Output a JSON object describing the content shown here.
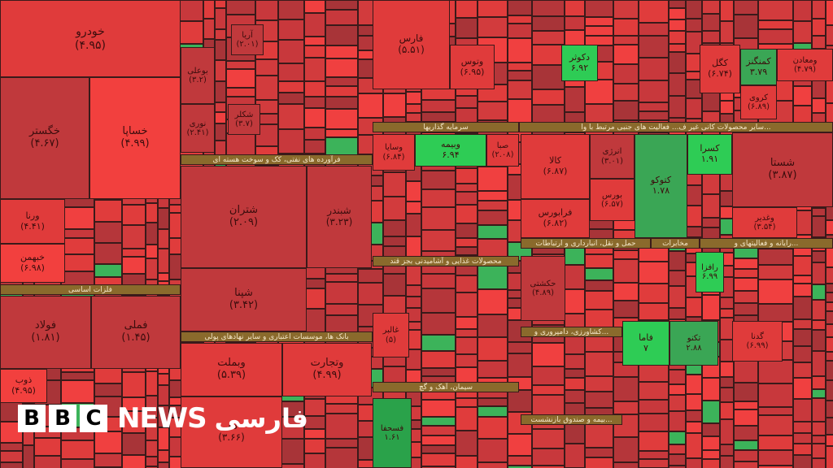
{
  "cells": [
    {
      "label": "خودرو",
      "value": "(۴.۹۵)"
    },
    {
      "label": "خگستر",
      "value": "(۴.۶۷)"
    },
    {
      "label": "خساپا",
      "value": "(۴.۹۹)"
    },
    {
      "label": "ورنا",
      "value": "(۴.۴۱)"
    },
    {
      "label": "خبهمن",
      "value": "(۶.۹۸)"
    },
    {
      "label": "فولاد",
      "value": "(۱.۸۱)"
    },
    {
      "label": "فملی",
      "value": "(۱.۴۵)"
    },
    {
      "label": "ذوب",
      "value": "(۴.۹۵)"
    },
    {
      "label": "بوعلی",
      "value": "(۳.۲)"
    },
    {
      "label": "نوری",
      "value": "(۲.۴۱)"
    },
    {
      "label": "شتران",
      "value": "(۲.۰۹)"
    },
    {
      "label": "شبندر",
      "value": "(۳.۲۳)"
    },
    {
      "label": "شپنا",
      "value": "(۳.۴۲)"
    },
    {
      "label": "وبملت",
      "value": "(۵.۳۹)"
    },
    {
      "label": "وتجارت",
      "value": "(۴.۹۹)"
    },
    {
      "label": "دی",
      "value": "(۳.۶۶)"
    },
    {
      "label": "فارس",
      "value": "(۵.۵۱)"
    },
    {
      "label": "وتوس",
      "value": "(۶.۹۵)"
    },
    {
      "label": "دکوثر",
      "value": "۶.۹۲"
    },
    {
      "label": "کگل",
      "value": "(۶.۷۴)"
    },
    {
      "label": "کمنگنز",
      "value": "۳.۷۹"
    },
    {
      "label": "کروی",
      "value": "(۶.۸۹)"
    },
    {
      "label": "ومعادن",
      "value": "(۴.۷۹)"
    },
    {
      "label": "وسایا",
      "value": "(۶.۸۴)"
    },
    {
      "label": "وبیمه",
      "value": "۶.۹۴"
    },
    {
      "label": "صبا",
      "value": "(۲.۰۸)"
    },
    {
      "label": "کالا",
      "value": "(۶.۸۷)"
    },
    {
      "label": "فرابورس",
      "value": "(۶.۸۲)"
    },
    {
      "label": "انرژی",
      "value": "(۳.۰۱)"
    },
    {
      "label": "بورس",
      "value": "(۶.۵۷)"
    },
    {
      "label": "کتوکو",
      "value": "۱.۷۸"
    },
    {
      "label": "کسرا",
      "value": "۱.۹۱"
    },
    {
      "label": "شستا",
      "value": "(۳.۸۷)"
    },
    {
      "label": "وغدیر",
      "value": "(۳.۵۴)"
    },
    {
      "label": "حکشتی",
      "value": "(۴.۸۹)"
    },
    {
      "label": "رافزا",
      "value": "۶.۹۹"
    },
    {
      "label": "فاما",
      "value": "۷"
    },
    {
      "label": "تکنو",
      "value": "۲.۸۸"
    },
    {
      "label": "گدنا",
      "value": "(۶.۹۹)"
    },
    {
      "label": "غالبر",
      "value": "(۵)"
    },
    {
      "label": "فسحفا",
      "value": "۱.۶۱"
    },
    {
      "label": "آریا",
      "value": "(۲.۰۱)"
    },
    {
      "label": "شکلر",
      "value": "(۳.۷)"
    }
  ],
  "bands": [
    "فلزات اساسی",
    "فرآورده های نفتی، کک و سوخت هسته ای",
    "بانک ها، موسسات اعتباری و سایر نهادهای پولی",
    "سرمایه گذاریها",
    "سایر محصولات کانی غیر ف... فعالیت های جنبی مرتبط با وا...",
    "محصولات غذایی و آشامیدنی بجز قند",
    "حمل و نقل، انبارداری و ارتباطات",
    "مخابرات",
    "رایانه و فعالیتهای و...",
    "کشاورزی، دامپروری و...",
    "سیمان، آهک و گچ",
    "بیمه و صندوق بازنشست..."
  ],
  "logo": {
    "letters": [
      "B",
      "B",
      "C"
    ],
    "news": "NEWS",
    "persian": "فارسی"
  }
}
